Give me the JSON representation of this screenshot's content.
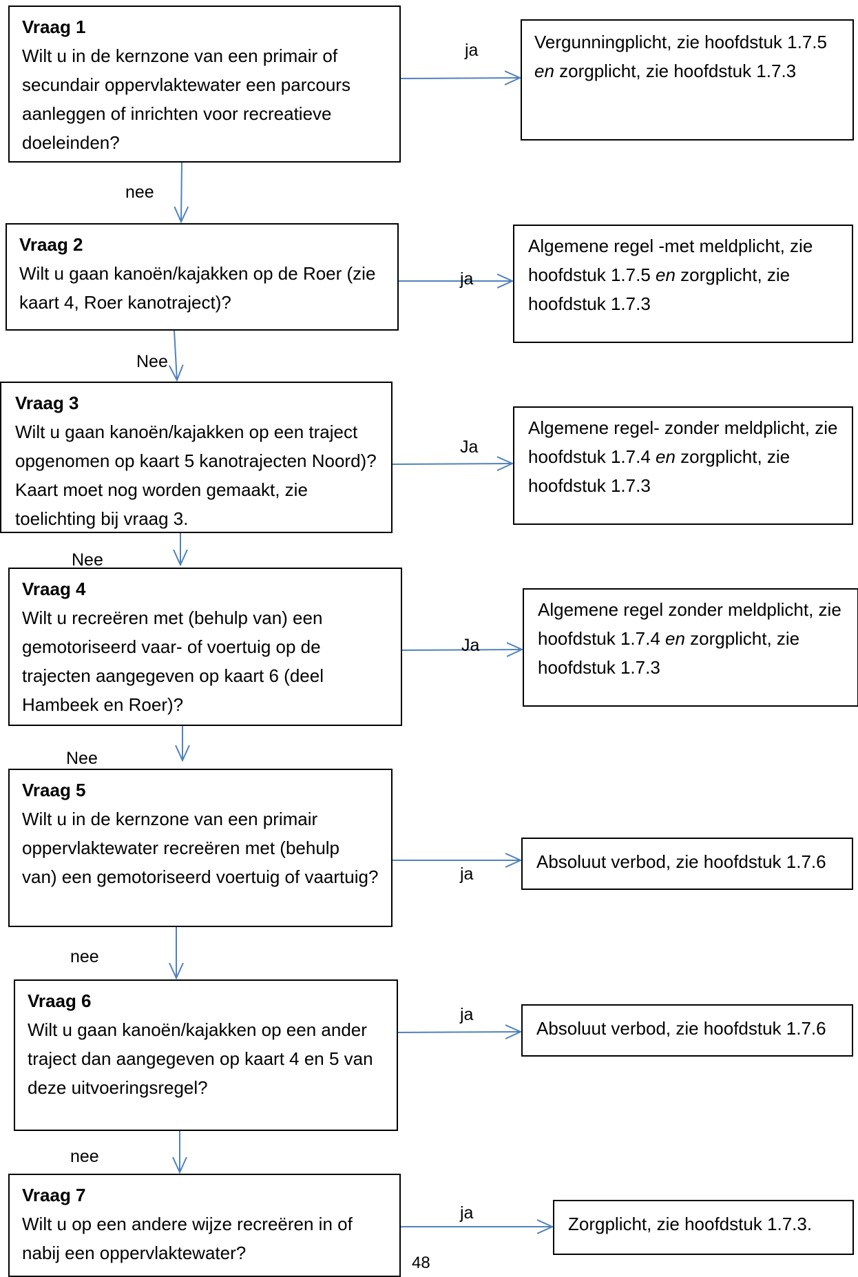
{
  "questions": [
    {
      "title": "Vraag 1",
      "text": "Wilt u in de kernzone van een primair of secundair oppervlaktewater een parcours aanleggen of inrichten voor recreatieve doeleinden?"
    },
    {
      "title": "Vraag 2",
      "text": "Wilt u gaan kanoën/kajakken op de Roer (zie kaart 4, Roer kanotraject)?"
    },
    {
      "title": "Vraag 3",
      "text": "Wilt u gaan kanoën/kajakken op een traject opgenomen op kaart 5 kanotrajecten Noord)? Kaart moet nog worden gemaakt, zie toelichting bij vraag 3."
    },
    {
      "title": "Vraag 4",
      "text": "Wilt u recreëren met (behulp van) een gemotoriseerd vaar- of voertuig op de trajecten aangegeven op kaart 6 (deel Hambeek en Roer)?"
    },
    {
      "title": "Vraag 5",
      "text": "Wilt u in de kernzone van een primair oppervlaktewater recreëren met (behulp van) een gemotoriseerd voertuig of vaartuig?"
    },
    {
      "title": "Vraag 6",
      "text": "Wilt u gaan kanoën/kajakken op een ander traject dan aangegeven op kaart 4 en 5 van deze uitvoeringsregel?"
    },
    {
      "title": "Vraag 7",
      "text": "Wilt u op een andere wijze recreëren in of nabij een oppervlaktewater?"
    }
  ],
  "answers": [
    {
      "before": "Vergunningplicht, zie hoofdstuk 1.7.5 ",
      "em": "en",
      "after": " zorgplicht, zie hoofdstuk 1.7.3"
    },
    {
      "before": "Algemene regel -met meldplicht, zie hoofdstuk 1.7.5 ",
      "em": "en",
      "after": " zorgplicht, zie hoofdstuk 1.7.3"
    },
    {
      "before": "Algemene regel- zonder meldplicht, zie hoofdstuk 1.7.4 ",
      "em": "en",
      "after": " zorgplicht, zie hoofdstuk 1.7.3"
    },
    {
      "before": "Algemene regel zonder meldplicht, zie hoofdstuk 1.7.4 ",
      "em": "en",
      "after": " zorgplicht, zie hoofdstuk 1.7.3"
    },
    {
      "before": "Absoluut verbod, zie hoofdstuk 1.7.6",
      "em": "",
      "after": ""
    },
    {
      "before": "Absoluut verbod, zie hoofdstuk 1.7.6",
      "em": "",
      "after": ""
    },
    {
      "before": "Zorgplicht, zie hoofdstuk 1.7.3.",
      "em": "",
      "after": ""
    }
  ],
  "yes_labels": [
    "ja",
    "ja",
    "Ja",
    "Ja",
    "ja",
    "ja",
    "ja"
  ],
  "no_labels": [
    "nee",
    "Nee",
    "Nee",
    "Nee",
    "nee",
    "nee"
  ],
  "page_number": "48",
  "colors": {
    "arrow": "#4f81bd",
    "border": "#000000"
  }
}
